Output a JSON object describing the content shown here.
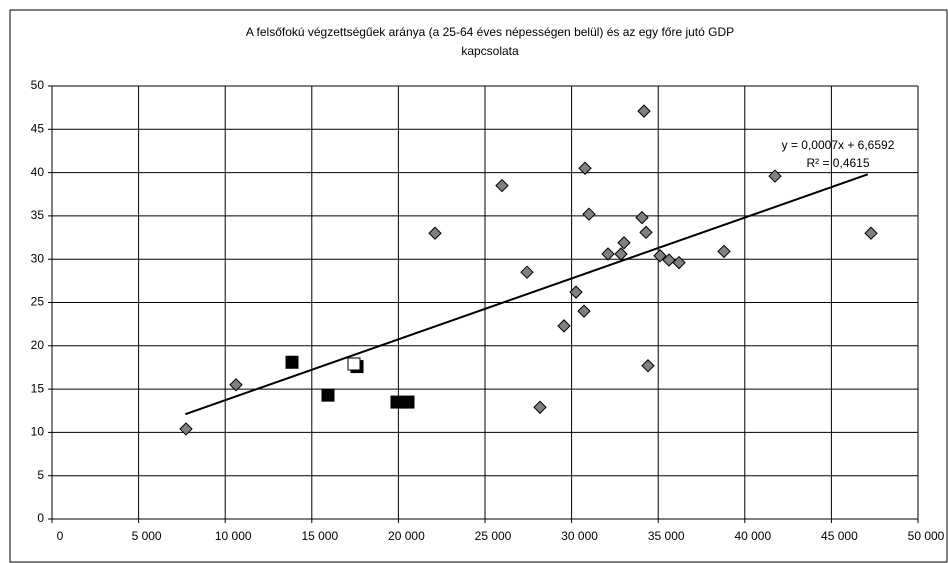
{
  "chart_data": {
    "type": "scatter",
    "title": "A felsőfokú végzettségűek aránya (a 25-64 éves népességen belül) és az egy főre jutó GDP kapcsolata",
    "title_lines": [
      "A felsőfokú végzettségűek aránya (a 25-64 éves népességen belül) és az egy főre jutó GDP",
      "kapcsolata"
    ],
    "annotations": [
      "y = 0,0007x + 6,6592",
      "R² = 0,4615"
    ],
    "xlim": [
      0,
      50000
    ],
    "ylim": [
      0,
      50
    ],
    "xticks": [
      {
        "value": 0,
        "label": "0"
      },
      {
        "value": 5000,
        "label": "5 000"
      },
      {
        "value": 10000,
        "label": "10 000"
      },
      {
        "value": 15000,
        "label": "15 000"
      },
      {
        "value": 20000,
        "label": "20 000"
      },
      {
        "value": 25000,
        "label": "25 000"
      },
      {
        "value": 30000,
        "label": "30 000"
      },
      {
        "value": 35000,
        "label": "35 000"
      },
      {
        "value": 40000,
        "label": "40 000"
      },
      {
        "value": 45000,
        "label": "45 000"
      },
      {
        "value": 50000,
        "label": "50 000"
      }
    ],
    "yticks": [
      0,
      5,
      10,
      15,
      20,
      25,
      30,
      35,
      40,
      45,
      50
    ],
    "grid": true,
    "series": [
      {
        "color": "#808080",
        "marker": "diamond",
        "x": [
          7737,
          10624,
          22113,
          25981,
          27425,
          28175,
          29561,
          30254,
          30716,
          30774,
          31005,
          32102,
          32852,
          33025,
          34065,
          34180,
          34296,
          34411,
          35104,
          35624,
          36201,
          38800,
          41744,
          47286
        ],
        "values": [
          10.4,
          15.5,
          33.0,
          38.5,
          28.5,
          12.9,
          22.3,
          26.2,
          24.0,
          40.5,
          35.2,
          30.6,
          30.6,
          31.9,
          34.8,
          47.1,
          33.1,
          17.7,
          30.4,
          29.9,
          29.6,
          30.9,
          39.6,
          33.0
        ]
      },
      {
        "color": "#000000",
        "marker": "square",
        "x": [
          13857,
          15935,
          17610,
          19919,
          20554
        ],
        "values": [
          18.1,
          14.3,
          17.6,
          13.5,
          13.5
        ]
      },
      {
        "color": "#ffffff",
        "marker": "square",
        "x": [
          17436
        ],
        "values": [
          17.9
        ]
      },
      {
        "color": "#000000",
        "marker": "line",
        "x": [
          7700,
          47100
        ],
        "values": [
          12.1,
          39.8
        ]
      }
    ]
  }
}
